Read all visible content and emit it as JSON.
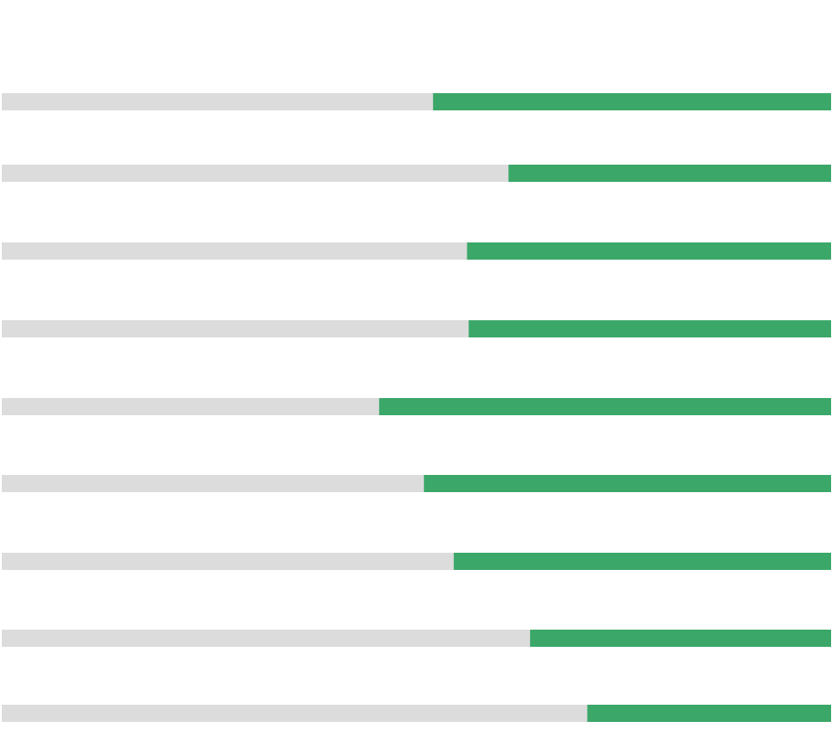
{
  "chart_data": {
    "type": "bar",
    "orientation": "horizontal",
    "anchor": "right",
    "values": [
      48.0,
      38.9,
      43.9,
      43.7,
      54.5,
      49.1,
      45.5,
      36.3,
      29.4
    ],
    "color": "#3ba769",
    "track_color": "#dcdcdc",
    "xlim": [
      0,
      100
    ]
  }
}
